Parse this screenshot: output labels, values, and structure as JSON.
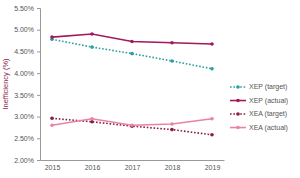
{
  "chart_data": {
    "type": "line",
    "y_label": "Inefficiency (%)",
    "categories": [
      "2015",
      "2016",
      "2017",
      "2018",
      "2019"
    ],
    "series": [
      {
        "name": "XEP (target)",
        "color": "#2a9ea0",
        "line_style": "dotted",
        "marker": "circle",
        "values": [
          4.78,
          4.6,
          4.45,
          4.28,
          4.1
        ]
      },
      {
        "name": "XEP (actual)",
        "color": "#a3195b",
        "line_style": "solid",
        "marker": "circle",
        "values": [
          4.83,
          4.9,
          4.73,
          4.7,
          4.67
        ]
      },
      {
        "name": "XEA (target)",
        "color": "#8c1c3f",
        "line_style": "dotted",
        "marker": "circle",
        "values": [
          2.96,
          2.88,
          2.78,
          2.7,
          2.58
        ]
      },
      {
        "name": "XEA (actual)",
        "color": "#e883a8",
        "line_style": "solid",
        "marker": "circle",
        "values": [
          2.8,
          2.95,
          2.8,
          2.83,
          2.95
        ]
      }
    ],
    "ylim": [
      2,
      5.5
    ],
    "yticks": [
      {
        "value": 2,
        "label": "2.00%"
      },
      {
        "value": 2.5,
        "label": "2.50%"
      },
      {
        "value": 3,
        "label": "3.00%"
      },
      {
        "value": 3.5,
        "label": "3.50%"
      },
      {
        "value": 4,
        "label": "4.00%"
      },
      {
        "value": 4.5,
        "label": "4.50%"
      },
      {
        "value": 5,
        "label": "5.00%"
      },
      {
        "value": 5.5,
        "label": "5.50%"
      }
    ],
    "grid": false,
    "legend": "right"
  }
}
